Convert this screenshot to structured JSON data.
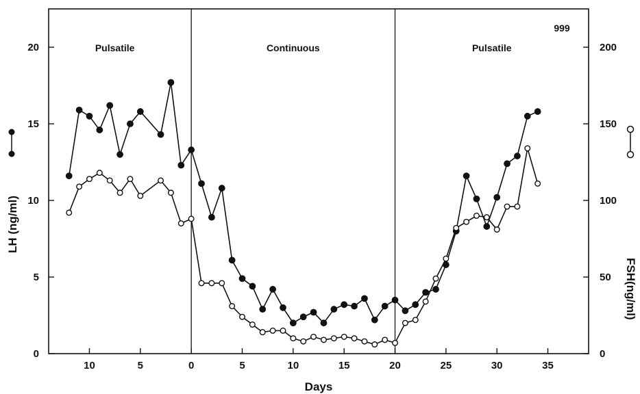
{
  "chart_data": {
    "type": "line",
    "figure_label": "999",
    "xlabel": "Days",
    "ylabel_left": "LH (ng/ml)",
    "ylabel_right": "FSH(ng/ml)",
    "x_axis": {
      "range": [
        -14,
        39
      ],
      "ticks": [
        -10,
        -5,
        0,
        5,
        10,
        15,
        20,
        25,
        30,
        35
      ],
      "tick_labels": [
        "10",
        "5",
        "0",
        "5",
        "10",
        "15",
        "20",
        "25",
        "30",
        "35"
      ]
    },
    "y_left": {
      "range": [
        0,
        22.5
      ],
      "ticks": [
        0,
        5,
        10,
        15,
        20
      ],
      "tick_labels": [
        "0",
        "5",
        "10",
        "15",
        "20"
      ]
    },
    "y_right": {
      "range": [
        0,
        225
      ],
      "ticks": [
        0,
        50,
        100,
        150,
        200
      ],
      "tick_labels": [
        "0",
        "50",
        "100",
        "150",
        "200"
      ]
    },
    "phases": [
      {
        "label": "Pulsatile",
        "x_center": -7.5
      },
      {
        "label": "Continuous",
        "x_center": 10
      },
      {
        "label": "Pulsatile",
        "x_center": 29.5
      }
    ],
    "phase_boundaries": [
      0,
      20
    ],
    "grid": false,
    "legend": "symbols beside axis titles: filled circles = LH (left axis), open circles = FSH (right axis)",
    "series": [
      {
        "name": "LH",
        "marker": "filled",
        "axis": "left",
        "x": [
          -12,
          -11,
          -10,
          -9,
          -8,
          -7,
          -6,
          -5,
          -3,
          -2,
          -1,
          0,
          1,
          2,
          3,
          4,
          5,
          6,
          7,
          8,
          9,
          10,
          11,
          12,
          13,
          14,
          15,
          16,
          17,
          18,
          19,
          20,
          21,
          22,
          23,
          24,
          25,
          26,
          27,
          28,
          29,
          30,
          31,
          32,
          33,
          34
        ],
        "y": [
          11.6,
          15.9,
          15.5,
          14.6,
          16.2,
          13.0,
          15.0,
          15.8,
          14.3,
          17.7,
          12.3,
          13.3,
          11.1,
          8.9,
          10.8,
          6.1,
          4.9,
          4.4,
          2.9,
          4.2,
          3.0,
          2.0,
          2.4,
          2.7,
          2.0,
          2.9,
          3.2,
          3.1,
          3.6,
          2.2,
          3.1,
          3.5,
          2.8,
          3.2,
          4.0,
          4.2,
          5.8,
          8.0,
          11.6,
          10.1,
          8.3,
          10.2,
          12.4,
          12.9,
          15.5,
          15.8
        ]
      },
      {
        "name": "FSH",
        "marker": "open",
        "axis": "right",
        "x": [
          -12,
          -11,
          -10,
          -9,
          -8,
          -7,
          -6,
          -5,
          -3,
          -2,
          -1,
          0,
          1,
          2,
          3,
          4,
          5,
          6,
          7,
          8,
          9,
          10,
          11,
          12,
          13,
          14,
          15,
          16,
          17,
          18,
          19,
          20,
          21,
          22,
          23,
          24,
          25,
          26,
          27,
          28,
          29,
          30,
          31,
          32,
          33,
          34
        ],
        "y": [
          92,
          109,
          114,
          118,
          113,
          105,
          114,
          103,
          113,
          105,
          85,
          88,
          46,
          46,
          46,
          31,
          24,
          19,
          14,
          15,
          15,
          10,
          8,
          11,
          9,
          10,
          11,
          10,
          8,
          6,
          9,
          7,
          20,
          22,
          34,
          49,
          62,
          82,
          86,
          90,
          89,
          81,
          96,
          96,
          134,
          111
        ]
      }
    ]
  }
}
